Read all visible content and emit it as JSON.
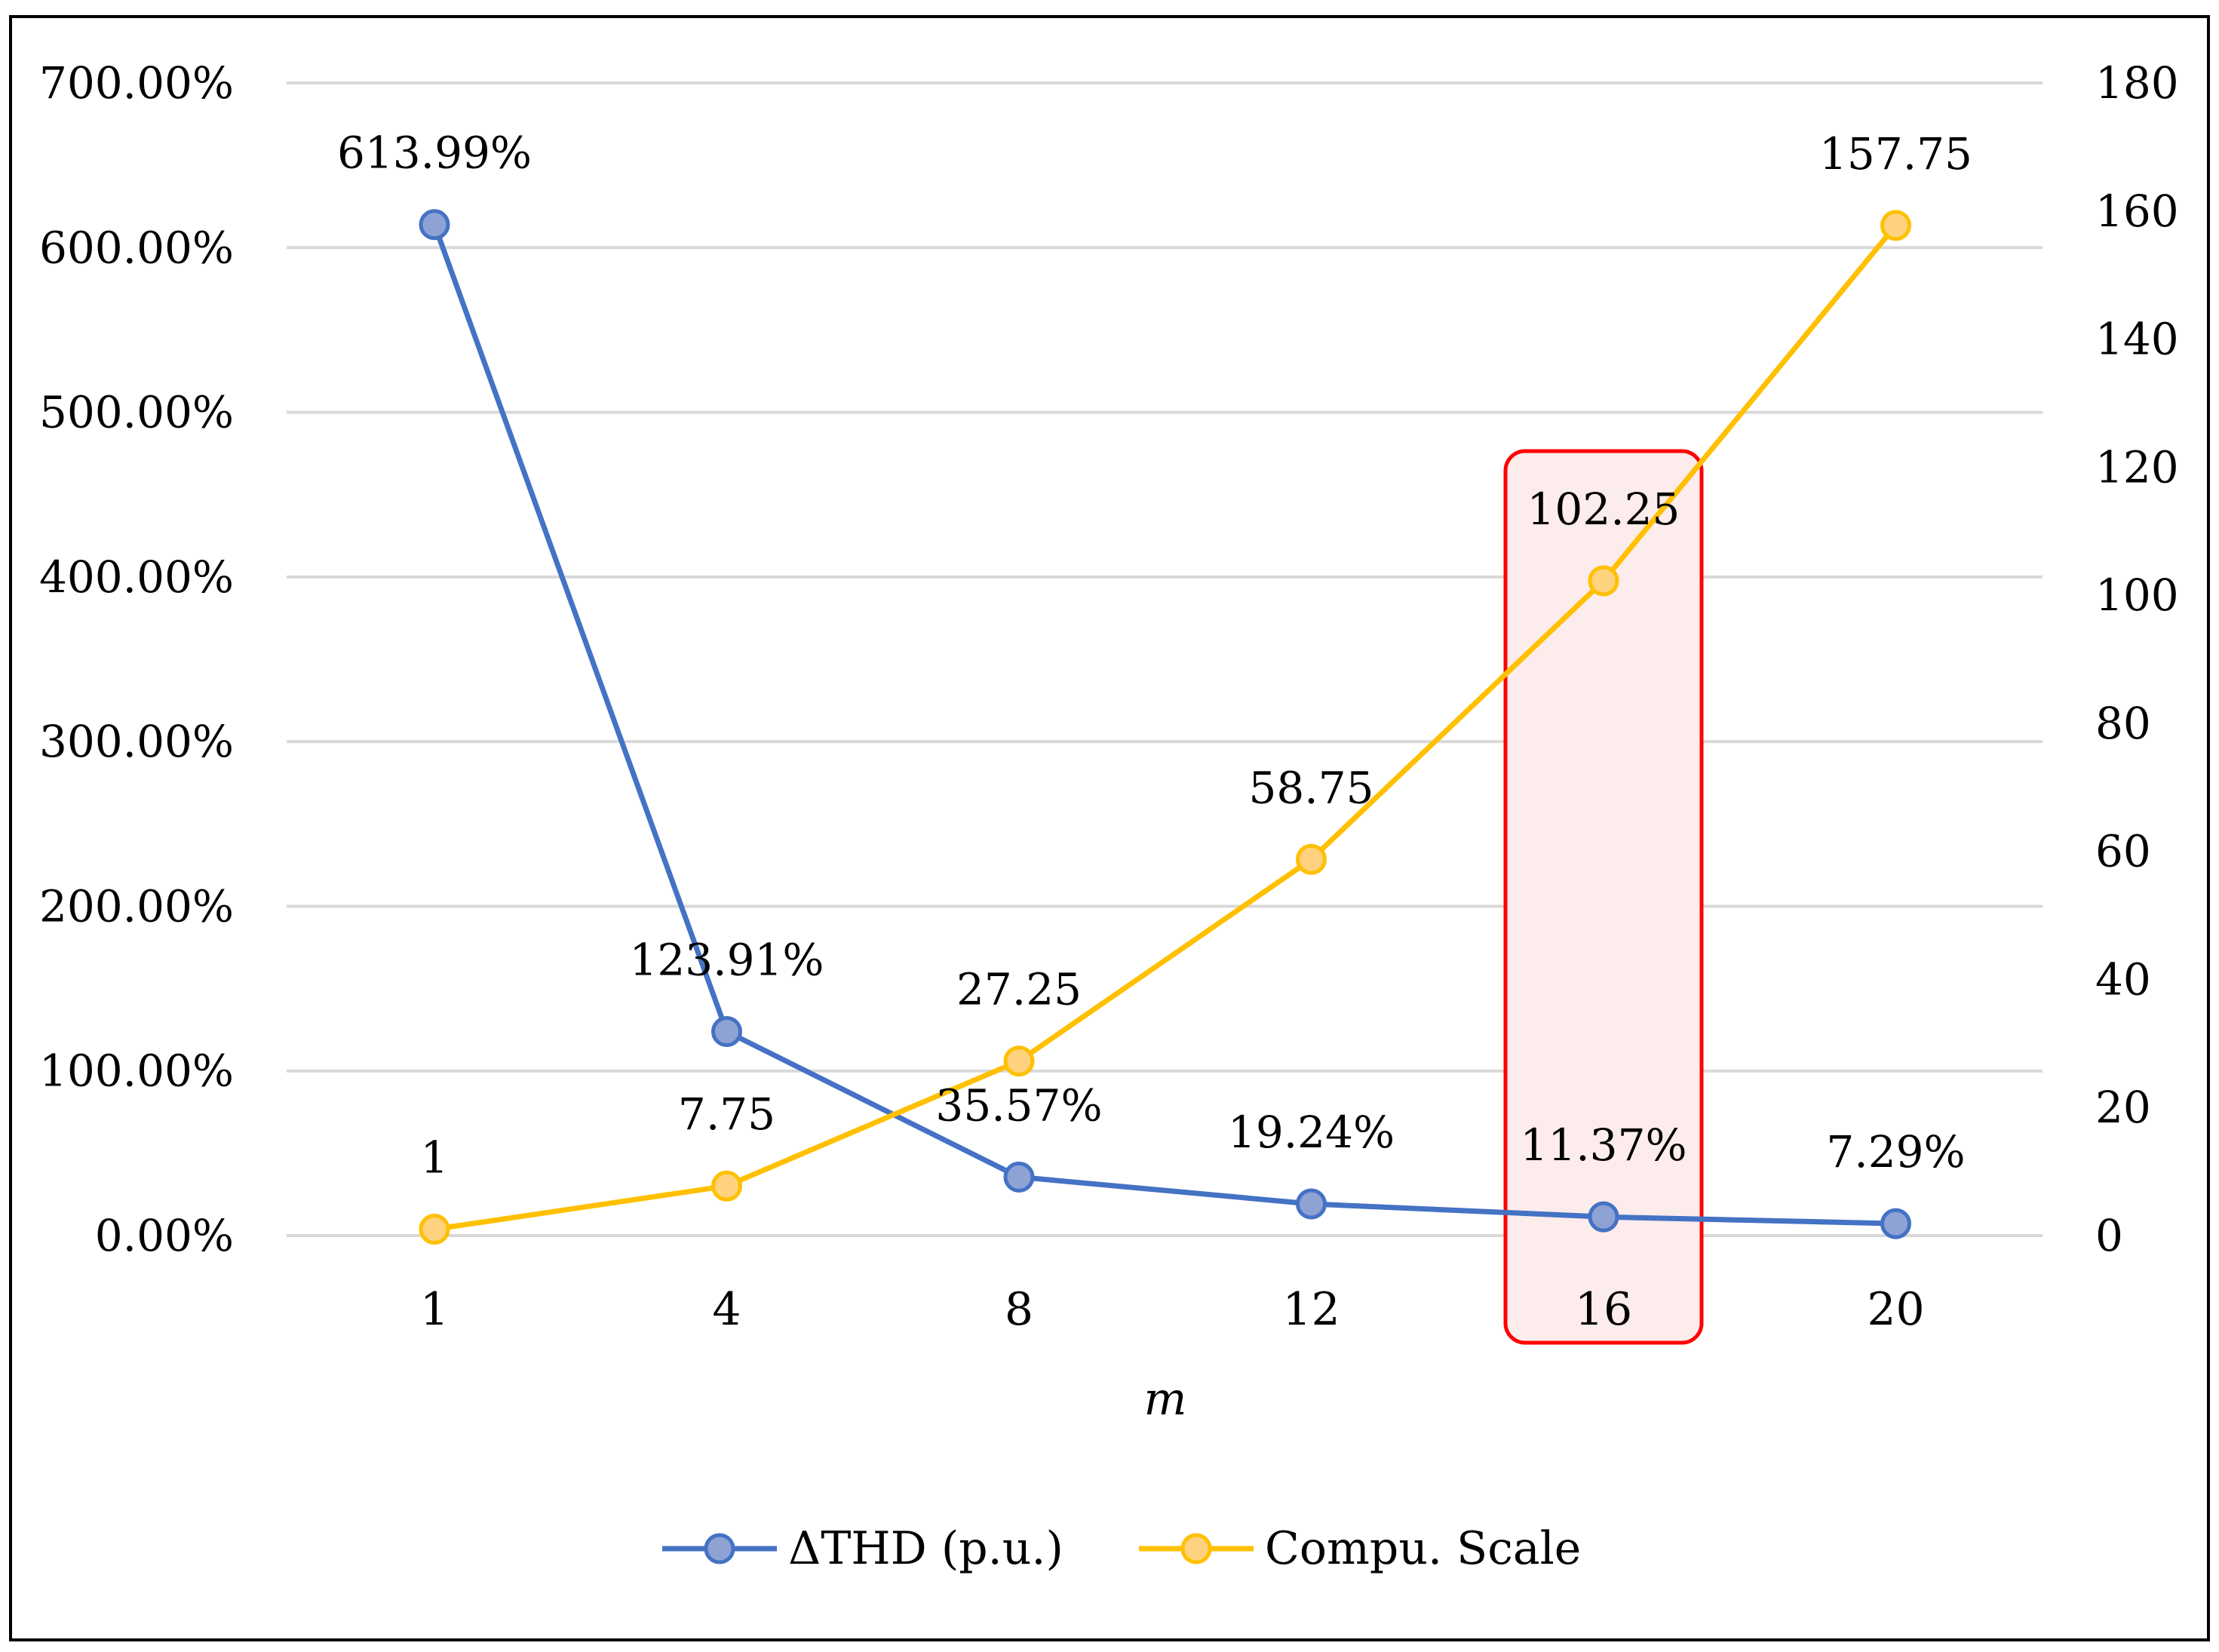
{
  "chart_data": {
    "type": "line",
    "dual_axis": true,
    "categories": [
      "1",
      "4",
      "8",
      "12",
      "16",
      "20"
    ],
    "xlabel": "m",
    "series": [
      {
        "name": "ΔTHD (p.u.)",
        "axis": "left",
        "values": [
          613.99,
          123.91,
          35.57,
          19.24,
          11.37,
          7.29
        ],
        "labels": [
          "613.99%",
          "123.91%",
          "35.57%",
          "19.24%",
          "11.37%",
          "7.29%"
        ]
      },
      {
        "name": "Compu. Scale",
        "axis": "right",
        "values": [
          1,
          7.75,
          27.25,
          58.75,
          102.25,
          157.75
        ],
        "labels": [
          "1",
          "7.75",
          "27.25",
          "58.75",
          "102.25",
          "157.75"
        ]
      }
    ],
    "y_left": {
      "ylim": [
        0,
        700
      ],
      "ticks": [
        0,
        100,
        200,
        300,
        400,
        500,
        600,
        700
      ],
      "tick_labels": [
        "0.00%",
        "100.00%",
        "200.00%",
        "300.00%",
        "400.00%",
        "500.00%",
        "600.00%",
        "700.00%"
      ]
    },
    "y_right": {
      "ylim": [
        0,
        180
      ],
      "ticks": [
        0,
        20,
        40,
        60,
        80,
        100,
        120,
        140,
        160,
        180
      ],
      "tick_labels": [
        "0",
        "20",
        "40",
        "60",
        "80",
        "100",
        "120",
        "140",
        "160",
        "180"
      ]
    },
    "highlight_category": "16",
    "grid": true,
    "legend": "bottom-center"
  },
  "colors": {
    "thd_line": "#4472C4",
    "thd_marker_fill": "#8FA2D4",
    "scale_line": "#FFC000",
    "scale_marker_fill": "#FFD27F",
    "grid": "#D9D9D9",
    "highlight_stroke": "#FF0000",
    "highlight_fill": "#FDECEC",
    "frame": "#000000"
  }
}
